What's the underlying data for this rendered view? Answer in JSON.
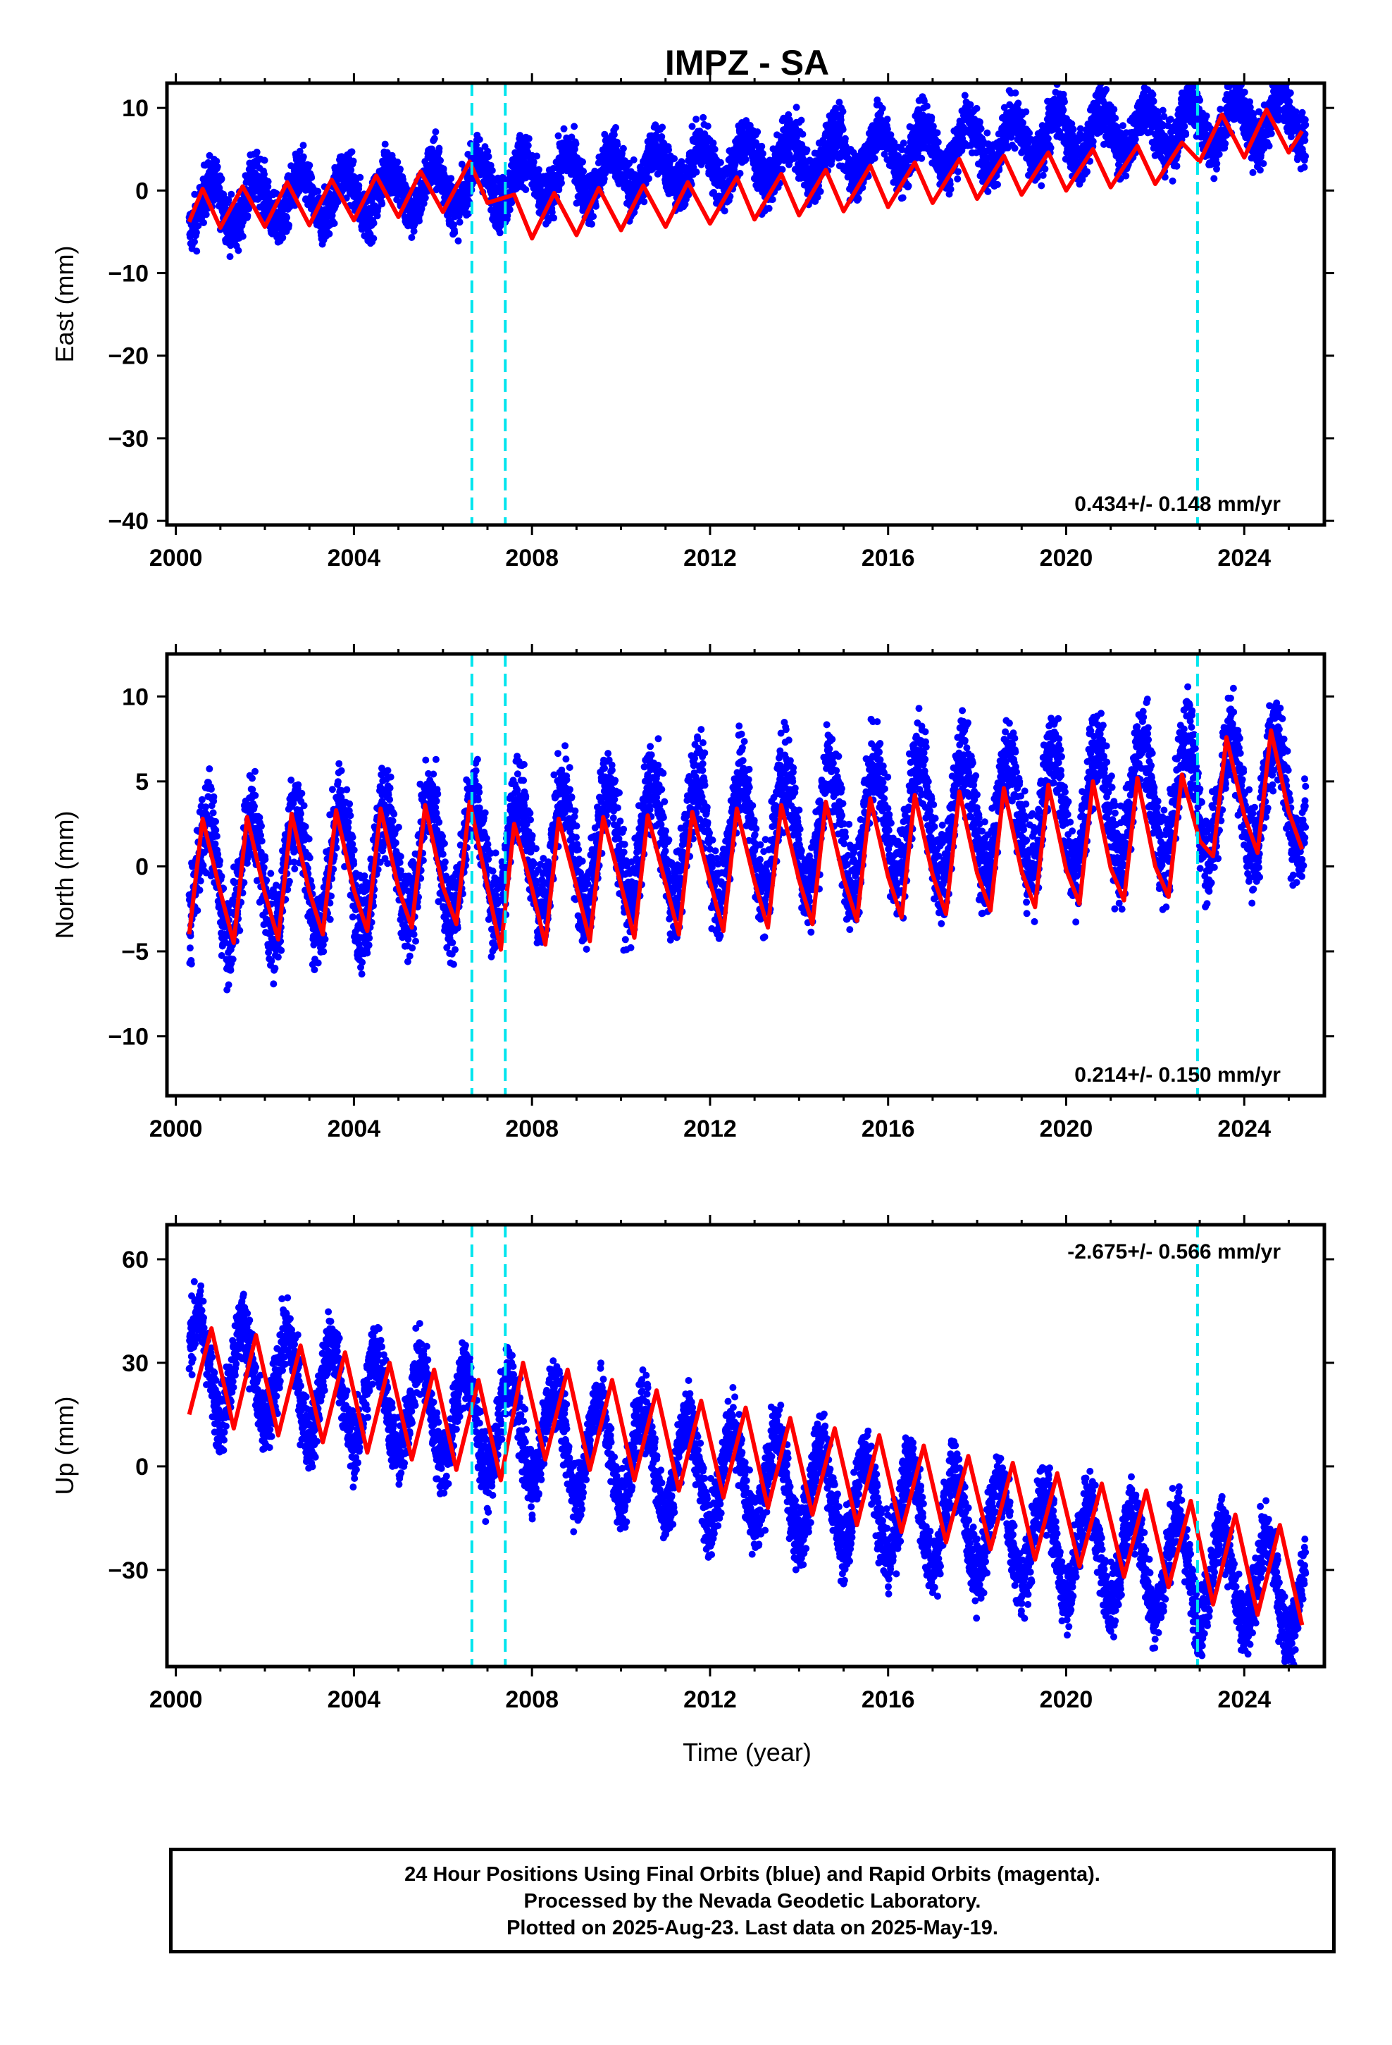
{
  "chart_data": [
    {
      "type": "scatter",
      "title": "IMPZ - SA",
      "ylabel": "East (mm)",
      "xlabel": "",
      "xlim": [
        1999.8,
        2025.8
      ],
      "ylim": [
        -40.5,
        13
      ],
      "xticks": [
        2000,
        2004,
        2008,
        2012,
        2016,
        2020,
        2024
      ],
      "yticks": [
        -40,
        -30,
        -20,
        -10,
        0,
        10
      ],
      "grid": false,
      "rate_text": "0.434+/- 0.148 mm/yr",
      "rate_pos": "bottom-right",
      "series": [
        {
          "kind": "points",
          "color": "#0000ff",
          "trend": -2.0,
          "rate": 0.434,
          "amp": 2.8,
          "phase": 0.55,
          "scatter": 2.2
        },
        {
          "kind": "model",
          "color": "#ff0000",
          "x": [
            2000.3,
            2000.6,
            2001.0,
            2001.5,
            2002.0,
            2002.5,
            2003.0,
            2003.5,
            2004.0,
            2004.5,
            2005.0,
            2005.5,
            2006.0,
            2006.6,
            2007.0,
            2007.6,
            2008.0,
            2008.5,
            2009.0,
            2009.5,
            2010.0,
            2010.5,
            2011.0,
            2011.5,
            2012.0,
            2012.6,
            2013.0,
            2013.6,
            2014.0,
            2014.6,
            2015.0,
            2015.6,
            2016.0,
            2016.6,
            2017.0,
            2017.6,
            2018.0,
            2018.6,
            2019.0,
            2019.6,
            2020.0,
            2020.6,
            2021.0,
            2021.6,
            2022.0,
            2022.6,
            2023.0,
            2023.5,
            2024.0,
            2024.5,
            2025.0,
            2025.3
          ],
          "y": [
            -3.8,
            0.2,
            -4.5,
            0.5,
            -4.4,
            1.0,
            -4.2,
            1.3,
            -3.6,
            1.8,
            -3.2,
            2.3,
            -2.6,
            3.5,
            -1.5,
            -0.5,
            -5.8,
            -0.3,
            -5.4,
            0.3,
            -4.8,
            0.6,
            -4.4,
            1.0,
            -4.0,
            1.6,
            -3.5,
            2.0,
            -3.0,
            2.5,
            -2.5,
            3.0,
            -2.0,
            3.4,
            -1.5,
            3.8,
            -1.0,
            4.2,
            -0.5,
            4.6,
            0.0,
            5.0,
            0.4,
            5.4,
            0.8,
            5.8,
            3.5,
            9.2,
            4.0,
            9.8,
            4.6,
            7.2
          ]
        }
      ],
      "breaks": [
        2006.65,
        2007.4,
        2022.95
      ]
    },
    {
      "type": "scatter",
      "title": "",
      "ylabel": "North (mm)",
      "xlabel": "",
      "xlim": [
        1999.8,
        2025.8
      ],
      "ylim": [
        -13.5,
        12.5
      ],
      "xticks": [
        2000,
        2004,
        2008,
        2012,
        2016,
        2020,
        2024
      ],
      "yticks": [
        -10,
        -5,
        0,
        5,
        10
      ],
      "grid": false,
      "rate_text": "0.214+/- 0.150 mm/yr",
      "rate_pos": "bottom-right",
      "series": [
        {
          "kind": "points",
          "color": "#0000ff",
          "trend": -0.8,
          "rate": 0.214,
          "amp": 3.5,
          "phase": 0.45,
          "scatter": 1.9
        },
        {
          "kind": "model",
          "color": "#ff0000",
          "x": [
            2000.3,
            2000.6,
            2001.0,
            2001.3,
            2001.6,
            2002.0,
            2002.3,
            2002.6,
            2003.0,
            2003.3,
            2003.6,
            2004.0,
            2004.3,
            2004.6,
            2005.0,
            2005.3,
            2005.6,
            2006.0,
            2006.3,
            2006.6,
            2007.0,
            2007.3,
            2007.6,
            2008.0,
            2008.3,
            2008.6,
            2009.0,
            2009.3,
            2009.6,
            2010.0,
            2010.3,
            2010.6,
            2011.0,
            2011.3,
            2011.6,
            2012.0,
            2012.3,
            2012.6,
            2013.0,
            2013.3,
            2013.6,
            2014.0,
            2014.3,
            2014.6,
            2015.0,
            2015.3,
            2015.6,
            2016.0,
            2016.3,
            2016.6,
            2017.0,
            2017.3,
            2017.6,
            2018.0,
            2018.3,
            2018.6,
            2019.0,
            2019.3,
            2019.6,
            2020.0,
            2020.3,
            2020.6,
            2021.0,
            2021.3,
            2021.6,
            2022.0,
            2022.3,
            2022.6,
            2023.0,
            2023.3,
            2023.6,
            2024.0,
            2024.3,
            2024.6,
            2025.0,
            2025.3
          ],
          "y": [
            -4.0,
            2.8,
            -1.5,
            -4.5,
            2.9,
            -1.6,
            -4.3,
            3.1,
            -1.5,
            -4.0,
            3.3,
            -1.4,
            -3.8,
            3.4,
            -1.3,
            -3.6,
            3.6,
            -1.2,
            -3.4,
            3.8,
            -1.2,
            -4.9,
            2.5,
            -1.3,
            -4.6,
            2.8,
            -1.2,
            -4.4,
            2.9,
            -1.1,
            -4.2,
            3.0,
            -1.0,
            -4.0,
            3.2,
            -0.9,
            -3.8,
            3.4,
            -0.9,
            -3.6,
            3.6,
            -0.8,
            -3.4,
            3.8,
            -0.7,
            -3.2,
            4.0,
            -0.6,
            -3.0,
            4.2,
            -0.5,
            -2.8,
            4.4,
            -0.4,
            -2.6,
            4.6,
            -0.3,
            -2.4,
            4.8,
            -0.2,
            -2.2,
            5.0,
            -0.1,
            -2.0,
            5.2,
            0.0,
            -1.8,
            5.4,
            1.5,
            0.6,
            7.6,
            3.0,
            0.8,
            8.0,
            3.2,
            1.0
          ]
        }
      ],
      "breaks": [
        2006.65,
        2007.4,
        2022.95
      ]
    },
    {
      "type": "scatter",
      "title": "",
      "ylabel": "Up (mm)",
      "xlabel": "Time (year)",
      "xlim": [
        1999.8,
        2025.8
      ],
      "ylim": [
        -58,
        70
      ],
      "xticks": [
        2000,
        2004,
        2008,
        2012,
        2016,
        2020,
        2024
      ],
      "yticks": [
        -30,
        0,
        30,
        60
      ],
      "grid": false,
      "rate_text": "-2.675+/- 0.566 mm/yr",
      "rate_pos": "top-right",
      "series": [
        {
          "kind": "points",
          "color": "#0000ff",
          "trend": 30.0,
          "rate": -2.675,
          "amp": 14.0,
          "phase": 0.25,
          "scatter": 7.0
        },
        {
          "kind": "model",
          "color": "#ff0000",
          "x": [
            2000.3,
            2000.8,
            2001.3,
            2001.8,
            2002.3,
            2002.8,
            2003.3,
            2003.8,
            2004.3,
            2004.8,
            2005.3,
            2005.8,
            2006.3,
            2006.8,
            2007.3,
            2007.8,
            2008.3,
            2008.8,
            2009.3,
            2009.8,
            2010.3,
            2010.8,
            2011.3,
            2011.8,
            2012.3,
            2012.8,
            2013.3,
            2013.8,
            2014.3,
            2014.8,
            2015.3,
            2015.8,
            2016.3,
            2016.8,
            2017.3,
            2017.8,
            2018.3,
            2018.8,
            2019.3,
            2019.8,
            2020.3,
            2020.8,
            2021.3,
            2021.8,
            2022.3,
            2022.8,
            2023.3,
            2023.8,
            2024.3,
            2024.8,
            2025.3
          ],
          "y": [
            15,
            40,
            11,
            38,
            9,
            35,
            7,
            33,
            4,
            30,
            2,
            28,
            -1,
            25,
            -4,
            30,
            2,
            28,
            -1,
            25,
            -4,
            22,
            -7,
            19,
            -9,
            17,
            -12,
            14,
            -14,
            11,
            -17,
            9,
            -19,
            6,
            -22,
            3,
            -24,
            1,
            -27,
            -2,
            -29,
            -5,
            -32,
            -7,
            -35,
            -10,
            -40,
            -14,
            -43,
            -17,
            -46
          ]
        }
      ],
      "breaks": [
        2006.65,
        2007.4,
        2022.95
      ]
    }
  ],
  "footer": {
    "line1": "24 Hour Positions Using Final Orbits (blue) and Rapid Orbits (magenta).",
    "line2": "Processed by the Nevada Geodetic Laboratory.",
    "line3": "Plotted on 2025-Aug-23. Last data on 2025-May-19."
  }
}
